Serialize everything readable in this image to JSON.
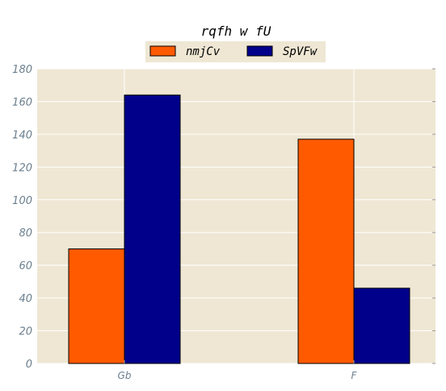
{
  "chart_data": {
    "type": "bar",
    "title": "rqfh w fU",
    "xlabel": "",
    "ylabel": "",
    "categories": [
      "Gb",
      "F"
    ],
    "series": [
      {
        "name": "nmjCv",
        "values": [
          70,
          137
        ],
        "color": "#ff5a00"
      },
      {
        "name": "SpVFw",
        "values": [
          164,
          46
        ],
        "color": "#00008b"
      }
    ],
    "ylim": [
      0,
      180
    ],
    "yticks": [
      0,
      20,
      40,
      60,
      80,
      100,
      120,
      140,
      160,
      180
    ],
    "grid": true,
    "legend_position": "top-center",
    "colors": {
      "plot_background": "#efe7d4",
      "grid": "#ffffff",
      "tick_text": "#6b7f8e"
    }
  }
}
